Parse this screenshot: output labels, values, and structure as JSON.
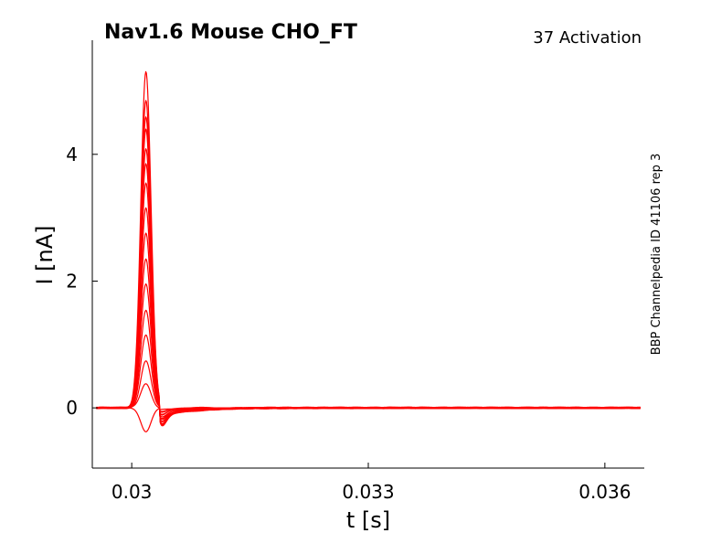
{
  "chart_data": {
    "type": "line",
    "title": "Nav1.6  Mouse  CHO_FT",
    "subtitle": "37  Activation",
    "side_label": "BBP Channelpedia ID 41106 rep 3",
    "xlabel": "t [s]",
    "ylabel": "I [nA]",
    "xlim": [
      0.0295,
      0.0365
    ],
    "ylim": [
      -0.95,
      5.8
    ],
    "xticks": [
      0.03,
      0.033,
      0.036
    ],
    "xtick_labels": [
      "0.03",
      "0.033",
      "0.036"
    ],
    "yticks": [
      0,
      2,
      4
    ],
    "ytick_labels": [
      "0",
      "2",
      "4"
    ],
    "grid": false,
    "color": "#ff0000",
    "series_shape": {
      "peak_time": 0.03018,
      "after_dip_time": 0.03036,
      "step_end_time": 0.03035
    },
    "series": [
      {
        "peak": -0.38,
        "after_dip": -0.02
      },
      {
        "peak": 0.38,
        "after_dip": -0.05
      },
      {
        "peak": 0.75,
        "after_dip": -0.08
      },
      {
        "peak": 1.15,
        "after_dip": -0.11
      },
      {
        "peak": 1.55,
        "after_dip": -0.14
      },
      {
        "peak": 1.95,
        "after_dip": -0.17
      },
      {
        "peak": 2.35,
        "after_dip": -0.2
      },
      {
        "peak": 2.75,
        "after_dip": -0.22
      },
      {
        "peak": 3.15,
        "after_dip": -0.24
      },
      {
        "peak": 3.55,
        "after_dip": -0.26
      },
      {
        "peak": 3.85,
        "after_dip": -0.28
      },
      {
        "peak": 4.1,
        "after_dip": -0.3
      },
      {
        "peak": 4.4,
        "after_dip": -0.31
      },
      {
        "peak": 4.6,
        "after_dip": -0.32
      },
      {
        "peak": 4.85,
        "after_dip": -0.33
      },
      {
        "peak": 5.3,
        "after_dip": -0.34
      }
    ]
  }
}
